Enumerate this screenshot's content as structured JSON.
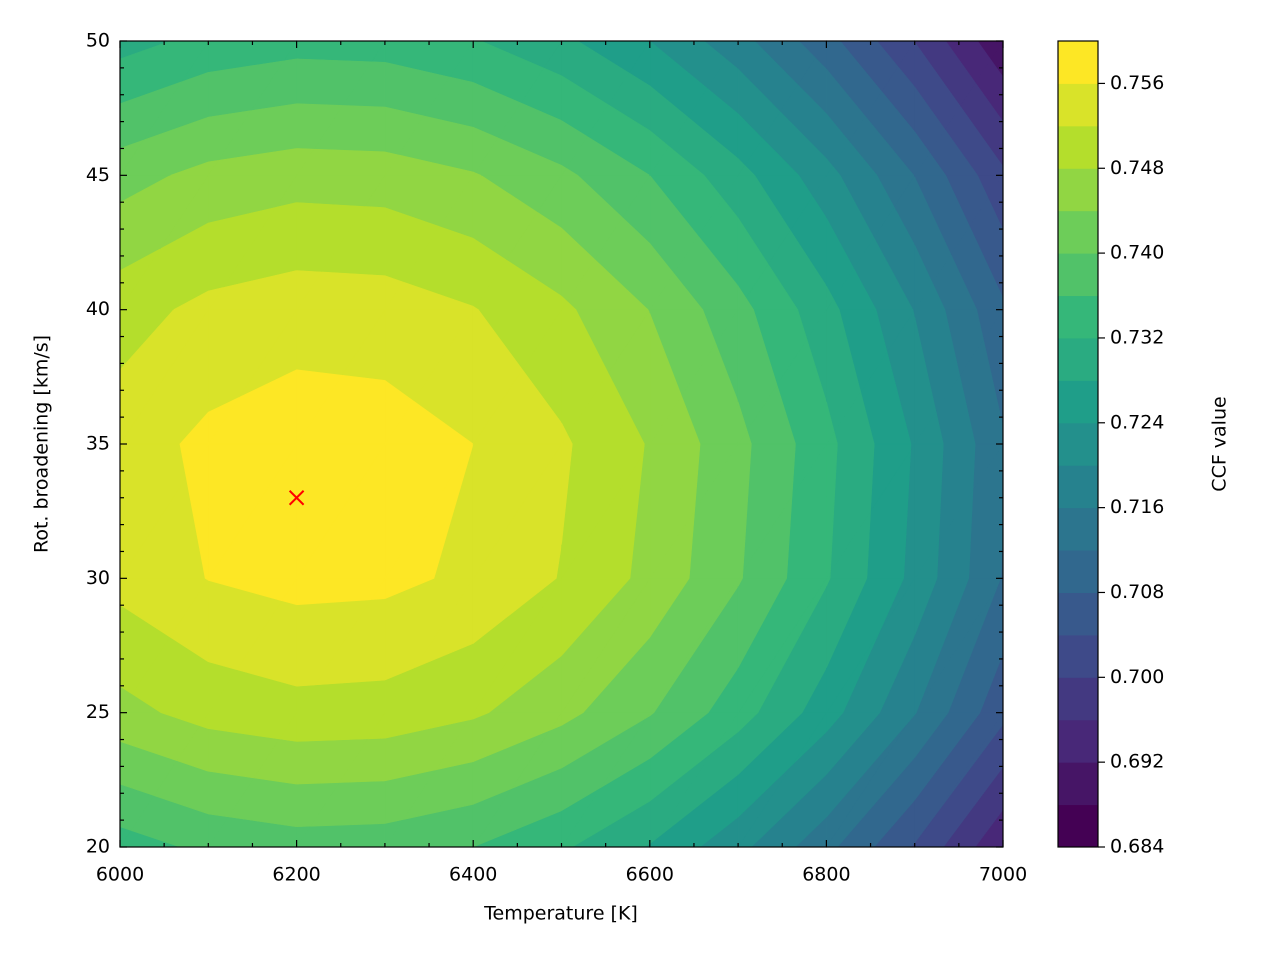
{
  "chart_data": {
    "type": "contourf",
    "xlabel": "Temperature [K]",
    "ylabel": "Rot. broadening [km/s]",
    "colorbar_label": "CCF value",
    "x": [
      6000,
      6100,
      6200,
      6300,
      6400,
      6500,
      6600,
      6700,
      6800,
      6900,
      7000
    ],
    "y": [
      20,
      25,
      30,
      35,
      40,
      45,
      50
    ],
    "z": [
      [
        0.7341,
        0.7369,
        0.7381,
        0.7378,
        0.736,
        0.7326,
        0.7277,
        0.7212,
        0.7132,
        0.7036,
        0.6925
      ],
      [
        0.7467,
        0.7495,
        0.7507,
        0.7504,
        0.7486,
        0.7452,
        0.7403,
        0.7338,
        0.7258,
        0.7162,
        0.7051
      ],
      [
        0.7533,
        0.7561,
        0.7573,
        0.757,
        0.7552,
        0.7518,
        0.7469,
        0.7404,
        0.7324,
        0.7228,
        0.7117
      ],
      [
        0.7541,
        0.7569,
        0.7581,
        0.7578,
        0.756,
        0.7526,
        0.7477,
        0.7412,
        0.7332,
        0.7236,
        0.7125
      ],
      [
        0.7503,
        0.7531,
        0.7543,
        0.754,
        0.7522,
        0.7488,
        0.7439,
        0.7374,
        0.7294,
        0.7198,
        0.7087
      ],
      [
        0.7424,
        0.7452,
        0.7464,
        0.7461,
        0.7443,
        0.7409,
        0.736,
        0.7295,
        0.7215,
        0.7119,
        0.7008
      ],
      [
        0.7304,
        0.7332,
        0.7344,
        0.7341,
        0.7323,
        0.7289,
        0.724,
        0.7175,
        0.7095,
        0.6999,
        0.6888
      ]
    ],
    "levels": [
      0.684,
      0.688,
      0.692,
      0.696,
      0.7,
      0.704,
      0.708,
      0.712,
      0.716,
      0.72,
      0.724,
      0.728,
      0.732,
      0.736,
      0.74,
      0.744,
      0.748,
      0.752,
      0.756,
      0.76
    ],
    "colormap": "viridis",
    "xlim": [
      6000,
      7000
    ],
    "xticks": [
      6000,
      6200,
      6400,
      6600,
      6800,
      7000
    ],
    "ylim": [
      20,
      50
    ],
    "yticks": [
      20,
      25,
      30,
      35,
      40,
      45,
      50
    ],
    "zticks": [
      0.684,
      0.692,
      {
        "value": 0.7,
        "label": "0.700"
      },
      0.708,
      0.716,
      0.724,
      0.732,
      {
        "value": 0.74,
        "label": "0.740"
      },
      0.748,
      0.756
    ],
    "minor_ticks": true,
    "marker": {
      "x": 6200,
      "y": 33,
      "color": "red"
    }
  }
}
